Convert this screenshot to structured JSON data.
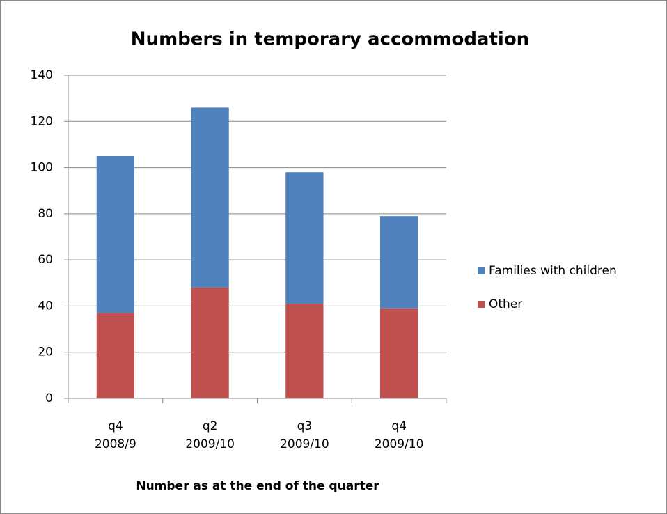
{
  "chart_data": {
    "type": "stacked_bar",
    "title": "Numbers in temporary accommodation",
    "x_label": "Number as at the end of the quarter",
    "categories": [
      [
        "q4",
        "2008/9"
      ],
      [
        "q2",
        "2009/10"
      ],
      [
        "q3",
        "2009/10"
      ],
      [
        "q4",
        "2009/10"
      ]
    ],
    "series": [
      {
        "name": "Families with children",
        "color": "#4f81bd",
        "values": [
          68,
          78,
          57,
          40
        ]
      },
      {
        "name": "Other",
        "color": "#c0504d",
        "values": [
          37,
          48,
          41,
          39
        ]
      }
    ],
    "ylim": [
      0,
      140
    ],
    "yticks": [
      0,
      20,
      40,
      60,
      80,
      100,
      120,
      140
    ],
    "grid": true,
    "legend": "right"
  }
}
